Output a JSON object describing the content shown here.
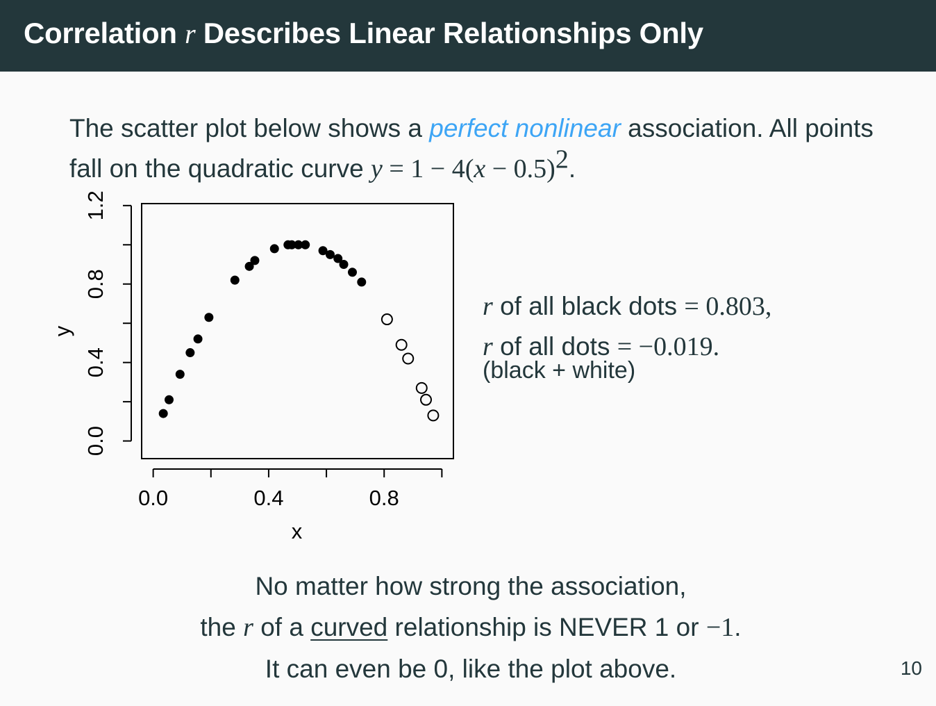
{
  "slide": {
    "title_before": "Correlation ",
    "title_r": "r",
    "title_after": " Describes Linear Relationships Only",
    "intro_part1": "The scatter plot below shows a ",
    "intro_emph": "perfect nonlinear",
    "intro_part2": " association. All points fall on the quadratic curve ",
    "intro_y": "y",
    "intro_eq1": " = 1 − 4(",
    "intro_x": "x",
    "intro_eq2": " − 0.5)",
    "intro_exp": "2",
    "intro_end": ".",
    "stat1_r": "r",
    "stat1_text": " of all black dots ",
    "stat1_value": "= 0.803,",
    "stat2_r": "r",
    "stat2_text": " of all dots ",
    "stat2_value": "= −0.019.",
    "stat2_note": "(black + white)",
    "concl_line1": "No matter how strong the association,",
    "concl_line2_a": "the ",
    "concl_line2_r": "r",
    "concl_line2_b": " of a ",
    "concl_line2_u": "curved",
    "concl_line2_c": " relationship is NEVER 1 or ",
    "concl_line2_neg": "−1",
    "concl_line2_end": ".",
    "concl_line3": "It can even be 0, like the plot above.",
    "page_number": "10"
  },
  "colors": {
    "title_bar": "#23373b",
    "background": "#fafafa",
    "alert": "#3da5f5",
    "text": "#23373b"
  },
  "chart_data": {
    "type": "scatter",
    "xlabel": "x",
    "ylabel": "y",
    "xlim": [
      -0.04,
      1.04
    ],
    "ylim": [
      -0.09,
      1.21
    ],
    "xticks": [
      0.0,
      0.2,
      0.4,
      0.6,
      0.8,
      1.0
    ],
    "xtick_labels": [
      "0.0",
      "",
      "0.4",
      "",
      "0.8",
      ""
    ],
    "yticks": [
      0.0,
      0.2,
      0.4,
      0.6,
      0.8,
      1.0,
      1.2
    ],
    "ytick_labels": [
      "0.0",
      "",
      "0.4",
      "",
      "0.8",
      "",
      "1.2"
    ],
    "series": [
      {
        "style": "filled",
        "x": [
          0.035,
          0.055,
          0.093,
          0.128,
          0.155,
          0.193,
          0.283,
          0.333,
          0.352,
          0.42,
          0.467,
          0.48,
          0.503,
          0.527,
          0.588,
          0.613,
          0.64,
          0.66,
          0.69,
          0.722
        ],
        "y": [
          0.14,
          0.21,
          0.34,
          0.45,
          0.52,
          0.63,
          0.82,
          0.89,
          0.92,
          0.98,
          1.0,
          1.0,
          1.0,
          1.0,
          0.97,
          0.95,
          0.93,
          0.9,
          0.86,
          0.81
        ]
      },
      {
        "style": "open",
        "x": [
          0.81,
          0.86,
          0.883,
          0.93,
          0.945,
          0.97
        ],
        "y": [
          0.62,
          0.49,
          0.42,
          0.27,
          0.21,
          0.13
        ]
      }
    ]
  }
}
